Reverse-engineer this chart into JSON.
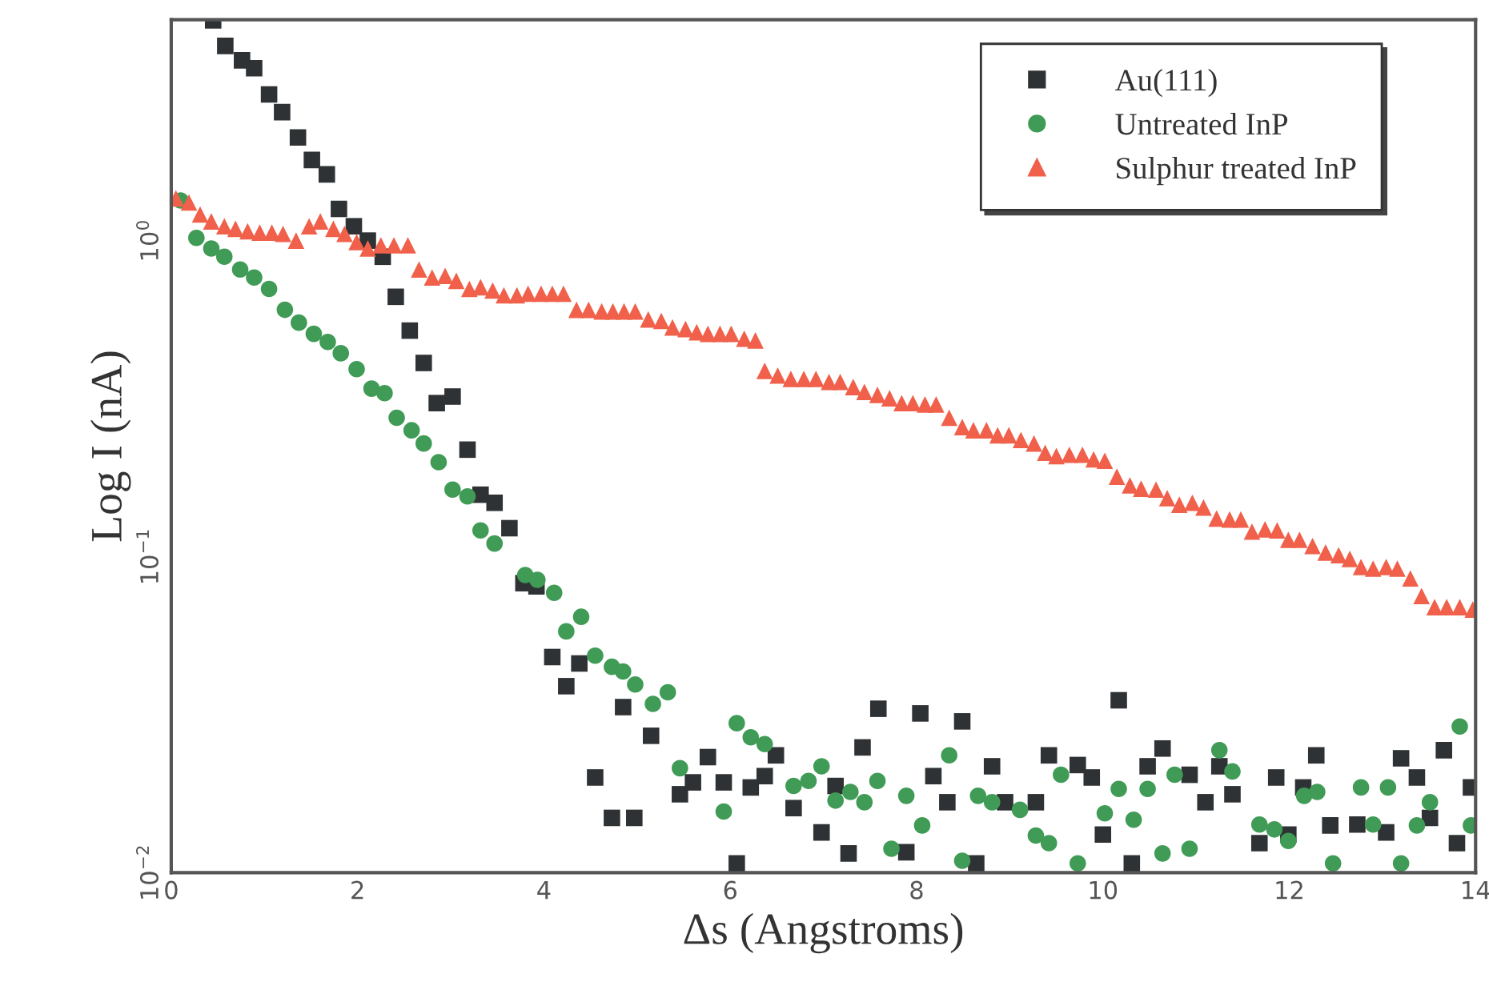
{
  "chart_data": {
    "type": "scatter",
    "xlabel": "Δs (Angstroms)",
    "ylabel": "Log I (nA)",
    "log": "y",
    "xlim": [
      0,
      14
    ],
    "xticks": [
      0,
      2,
      4,
      6,
      8,
      10,
      12,
      14
    ],
    "ylim": [
      0.01,
      5
    ],
    "yticks": [
      {
        "value": 0.01,
        "label": "10$^{−2}$"
      },
      {
        "value": 0.1,
        "label": "10$^{−1}$"
      },
      {
        "value": 1,
        "label": "10$^{0}$"
      }
    ],
    "grid": false,
    "legend": "top right",
    "series": [
      {
        "name": "Au(111)",
        "color": "#2f3234",
        "marker": "square",
        "x": [
          0.45,
          0.58,
          0.76,
          0.89,
          1.05,
          1.19,
          1.36,
          1.51,
          1.67,
          1.8,
          1.96,
          2.11,
          2.27,
          2.41,
          2.56,
          2.71,
          2.85,
          3.02,
          3.18,
          3.32,
          3.47,
          3.63,
          3.78,
          3.92,
          4.09,
          4.24,
          4.38,
          4.55,
          4.73,
          4.85,
          4.97,
          5.15,
          5.46,
          5.6,
          5.76,
          5.93,
          6.07,
          6.22,
          6.37,
          6.49,
          6.68,
          6.98,
          7.13,
          7.27,
          7.42,
          7.59,
          7.89,
          8.04,
          8.18,
          8.33,
          8.49,
          8.64,
          8.81,
          8.95,
          9.28,
          9.42,
          9.73,
          9.88,
          10.0,
          10.17,
          10.31,
          10.48,
          10.64,
          10.93,
          11.1,
          11.25,
          11.39,
          11.68,
          11.86,
          11.99,
          12.15,
          12.29,
          12.44,
          12.73,
          13.04,
          13.2,
          13.37,
          13.51,
          13.66,
          13.8,
          13.95
        ],
        "values": [
          4.98,
          4.13,
          3.72,
          3.51,
          2.9,
          2.55,
          2.12,
          1.8,
          1.62,
          1.26,
          1.11,
          1.0,
          0.889,
          0.664,
          0.519,
          0.41,
          0.306,
          0.321,
          0.218,
          0.157,
          0.148,
          0.123,
          0.0824,
          0.0805,
          0.0481,
          0.0389,
          0.0459,
          0.02,
          0.0149,
          0.0334,
          0.0149,
          0.0271,
          0.0177,
          0.0193,
          0.0232,
          0.0193,
          0.0107,
          0.0186,
          0.0202,
          0.0235,
          0.016,
          0.0134,
          0.0188,
          0.0115,
          0.0249,
          0.033,
          0.0116,
          0.0319,
          0.0202,
          0.0167,
          0.0301,
          0.0107,
          0.0217,
          0.0167,
          0.0167,
          0.0235,
          0.0219,
          0.02,
          0.0132,
          0.0351,
          0.0107,
          0.0217,
          0.0247,
          0.0204,
          0.0167,
          0.0217,
          0.0177,
          0.0124,
          0.02,
          0.0132,
          0.0186,
          0.0235,
          0.0141,
          0.0142,
          0.0134,
          0.023,
          0.02,
          0.0149,
          0.0244,
          0.0124,
          0.0186
        ]
      },
      {
        "name": "Untreated InP",
        "color": "#3f9b55",
        "marker": "circle",
        "x": [
          0.1,
          0.27,
          0.43,
          0.57,
          0.74,
          0.89,
          1.05,
          1.22,
          1.37,
          1.53,
          1.68,
          1.82,
          1.99,
          2.15,
          2.29,
          2.42,
          2.58,
          2.71,
          2.87,
          3.02,
          3.18,
          3.32,
          3.47,
          3.8,
          3.93,
          4.11,
          4.24,
          4.4,
          4.55,
          4.73,
          4.85,
          4.98,
          5.17,
          5.33,
          5.46,
          5.93,
          6.07,
          6.22,
          6.37,
          6.68,
          6.84,
          6.98,
          7.13,
          7.29,
          7.44,
          7.58,
          7.73,
          7.89,
          8.06,
          8.35,
          8.49,
          8.66,
          8.81,
          9.11,
          9.28,
          9.42,
          9.55,
          9.73,
          10.02,
          10.17,
          10.33,
          10.48,
          10.64,
          10.77,
          10.93,
          11.25,
          11.39,
          11.68,
          11.84,
          11.99,
          12.16,
          12.3,
          12.47,
          12.77,
          12.9,
          13.06,
          13.2,
          13.37,
          13.51,
          13.83,
          13.95
        ],
        "values": [
          1.34,
          1.02,
          0.944,
          0.889,
          0.81,
          0.764,
          0.703,
          0.604,
          0.55,
          0.507,
          0.478,
          0.44,
          0.392,
          0.34,
          0.329,
          0.275,
          0.251,
          0.228,
          0.199,
          0.163,
          0.155,
          0.121,
          0.11,
          0.0874,
          0.0844,
          0.0768,
          0.058,
          0.0645,
          0.0486,
          0.0448,
          0.0433,
          0.0394,
          0.0342,
          0.0372,
          0.0214,
          0.0156,
          0.0297,
          0.0268,
          0.0255,
          0.0188,
          0.0195,
          0.0217,
          0.0169,
          0.018,
          0.0167,
          0.0195,
          0.0119,
          0.0175,
          0.0141,
          0.0235,
          0.0109,
          0.0175,
          0.0167,
          0.0158,
          0.0131,
          0.0124,
          0.0204,
          0.0107,
          0.0154,
          0.0184,
          0.0147,
          0.0184,
          0.0115,
          0.0204,
          0.0119,
          0.0244,
          0.0209,
          0.0142,
          0.0137,
          0.0126,
          0.0175,
          0.018,
          0.0107,
          0.0186,
          0.0142,
          0.0186,
          0.0107,
          0.0141,
          0.0167,
          0.029,
          0.0141
        ]
      },
      {
        "name": "Sulphur treated InP",
        "color": "#f0604a",
        "marker": "triangle",
        "x": [
          0.05,
          0.19,
          0.31,
          0.43,
          0.57,
          0.69,
          0.82,
          0.95,
          1.08,
          1.2,
          1.34,
          1.48,
          1.6,
          1.74,
          1.86,
          1.99,
          2.11,
          2.25,
          2.39,
          2.54,
          2.66,
          2.8,
          2.94,
          3.06,
          3.2,
          3.32,
          3.45,
          3.57,
          3.71,
          3.83,
          3.97,
          4.09,
          4.21,
          4.35,
          4.48,
          4.62,
          4.74,
          4.86,
          4.98,
          5.12,
          5.26,
          5.38,
          5.52,
          5.64,
          5.76,
          5.89,
          6.01,
          6.15,
          6.27,
          6.37,
          6.51,
          6.65,
          6.79,
          6.92,
          7.06,
          7.18,
          7.32,
          7.44,
          7.58,
          7.71,
          7.84,
          7.96,
          8.09,
          8.21,
          8.35,
          8.49,
          8.61,
          8.75,
          8.87,
          8.99,
          9.12,
          9.26,
          9.38,
          9.5,
          9.64,
          9.78,
          9.9,
          10.02,
          10.15,
          10.29,
          10.41,
          10.57,
          10.69,
          10.82,
          10.96,
          11.08,
          11.22,
          11.36,
          11.48,
          11.6,
          11.74,
          11.87,
          11.99,
          12.11,
          12.25,
          12.39,
          12.53,
          12.65,
          12.77,
          12.9,
          13.04,
          13.16,
          13.3,
          13.42,
          13.56,
          13.69,
          13.83,
          13.97
        ],
        "values": [
          1.36,
          1.32,
          1.21,
          1.15,
          1.11,
          1.09,
          1.07,
          1.06,
          1.06,
          1.05,
          1.0,
          1.11,
          1.15,
          1.09,
          1.05,
          0.989,
          0.944,
          0.966,
          0.966,
          0.966,
          0.81,
          0.764,
          0.773,
          0.746,
          0.703,
          0.712,
          0.695,
          0.671,
          0.671,
          0.679,
          0.679,
          0.679,
          0.679,
          0.604,
          0.604,
          0.597,
          0.597,
          0.597,
          0.597,
          0.563,
          0.557,
          0.531,
          0.525,
          0.513,
          0.507,
          0.507,
          0.507,
          0.489,
          0.483,
          0.387,
          0.374,
          0.365,
          0.365,
          0.365,
          0.357,
          0.357,
          0.344,
          0.332,
          0.325,
          0.317,
          0.306,
          0.306,
          0.303,
          0.303,
          0.275,
          0.257,
          0.251,
          0.251,
          0.242,
          0.242,
          0.234,
          0.228,
          0.213,
          0.208,
          0.21,
          0.21,
          0.203,
          0.201,
          0.179,
          0.168,
          0.164,
          0.163,
          0.153,
          0.146,
          0.148,
          0.143,
          0.132,
          0.131,
          0.131,
          0.12,
          0.122,
          0.121,
          0.113,
          0.113,
          0.108,
          0.103,
          0.101,
          0.0983,
          0.0927,
          0.0916,
          0.0927,
          0.0916,
          0.0853,
          0.075,
          0.0692,
          0.0692,
          0.0692,
          0.068
        ]
      }
    ]
  }
}
